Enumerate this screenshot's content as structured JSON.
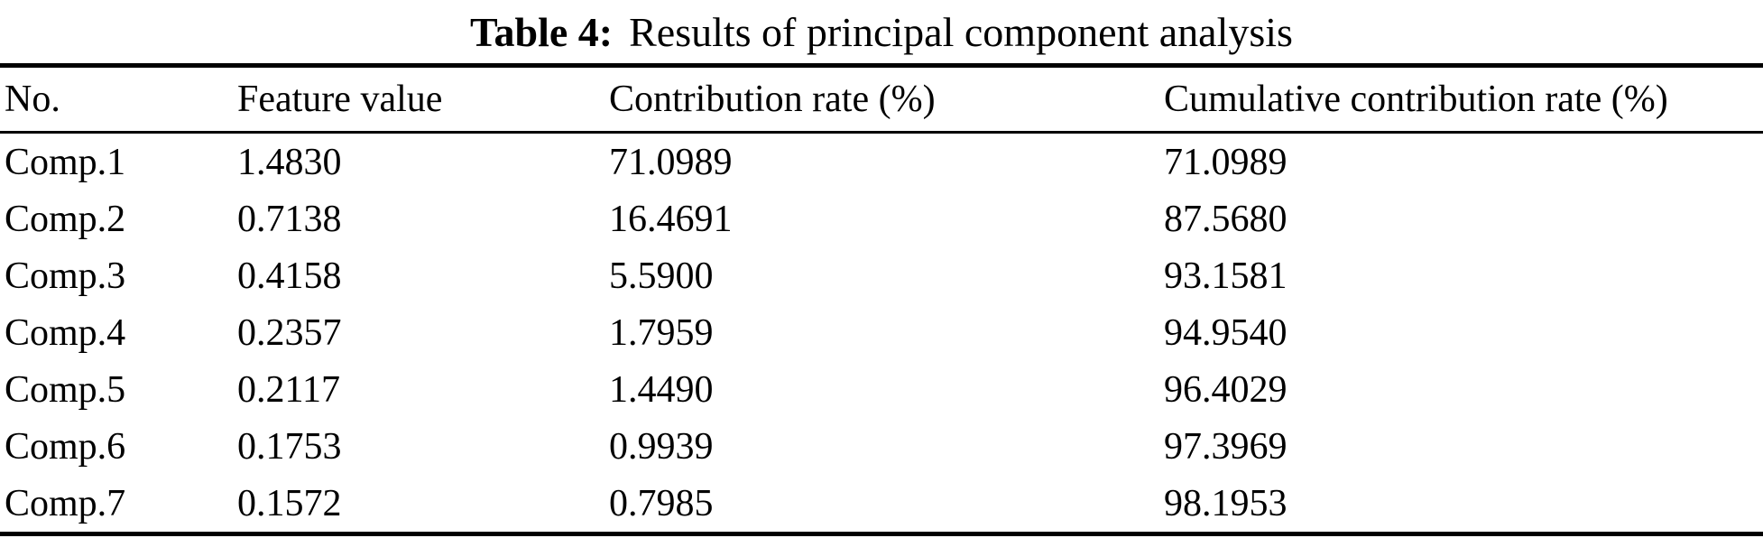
{
  "caption": {
    "label": "Table 4:",
    "title": "Results of principal component analysis"
  },
  "table": {
    "columns": [
      "No.",
      "Feature value",
      "Contribution rate (%)",
      "Cumulative contribution rate (%)"
    ],
    "rows": [
      [
        "Comp.1",
        "1.4830",
        "71.0989",
        "71.0989"
      ],
      [
        "Comp.2",
        "0.7138",
        "16.4691",
        "87.5680"
      ],
      [
        "Comp.3",
        "0.4158",
        "5.5900",
        "93.1581"
      ],
      [
        "Comp.4",
        "0.2357",
        "1.7959",
        "94.9540"
      ],
      [
        "Comp.5",
        "0.2117",
        "1.4490",
        "96.4029"
      ],
      [
        "Comp.6",
        "0.1753",
        "0.9939",
        "97.3969"
      ],
      [
        "Comp.7",
        "0.1572",
        "0.7985",
        "98.1953"
      ]
    ]
  },
  "chart_data": {
    "type": "table",
    "title": "Table 4: Results of principal component analysis",
    "categories": [
      "Comp.1",
      "Comp.2",
      "Comp.3",
      "Comp.4",
      "Comp.5",
      "Comp.6",
      "Comp.7"
    ],
    "series": [
      {
        "name": "Feature value",
        "values": [
          1.483,
          0.7138,
          0.4158,
          0.2357,
          0.2117,
          0.1753,
          0.1572
        ]
      },
      {
        "name": "Contribution rate (%)",
        "values": [
          71.0989,
          16.4691,
          5.59,
          1.7959,
          1.449,
          0.9939,
          0.7985
        ]
      },
      {
        "name": "Cumulative contribution rate (%)",
        "values": [
          71.0989,
          87.568,
          93.1581,
          94.954,
          96.4029,
          97.3969,
          98.1953
        ]
      }
    ]
  },
  "colors": {
    "text": "#000000",
    "background": "#ffffff",
    "rule": "#000000"
  }
}
